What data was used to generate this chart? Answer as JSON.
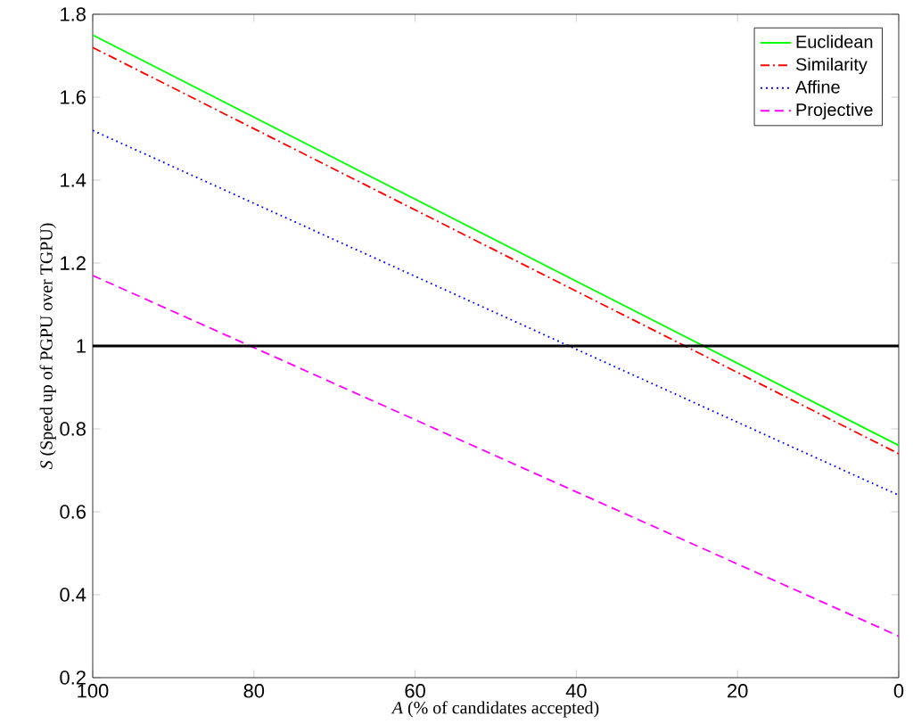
{
  "chart_data": {
    "type": "line",
    "xlabel": "*A* (% of candidates accepted)",
    "ylabel": "*S* (Speed up of PGPU over TGPU)",
    "x": [
      100,
      0
    ],
    "series": [
      {
        "name": "Euclidean",
        "color": "#00ff00",
        "line_style": "solid",
        "values": [
          1.75,
          0.76
        ]
      },
      {
        "name": "Similarity",
        "color": "#ff0000",
        "line_style": "dashdot",
        "values": [
          1.72,
          0.74
        ]
      },
      {
        "name": "Affine",
        "color": "#0000ff",
        "line_style": "dotted",
        "values": [
          1.52,
          0.64
        ]
      },
      {
        "name": "Projective",
        "color": "#ff00ff",
        "line_style": "dashed",
        "values": [
          1.17,
          0.3
        ]
      }
    ],
    "xlim": [
      100,
      0
    ],
    "xticks": [
      100,
      80,
      60,
      40,
      20,
      0
    ],
    "ylim": [
      0.2,
      1.8
    ],
    "yticks": [
      0.2,
      0.4,
      0.6,
      0.8,
      1,
      1.2,
      1.4,
      1.6,
      1.8
    ],
    "ref_lines": [
      {
        "axis": "y",
        "value": 1,
        "color": "#000000"
      }
    ],
    "legend": "top right",
    "grid": false,
    "marker": "none"
  }
}
